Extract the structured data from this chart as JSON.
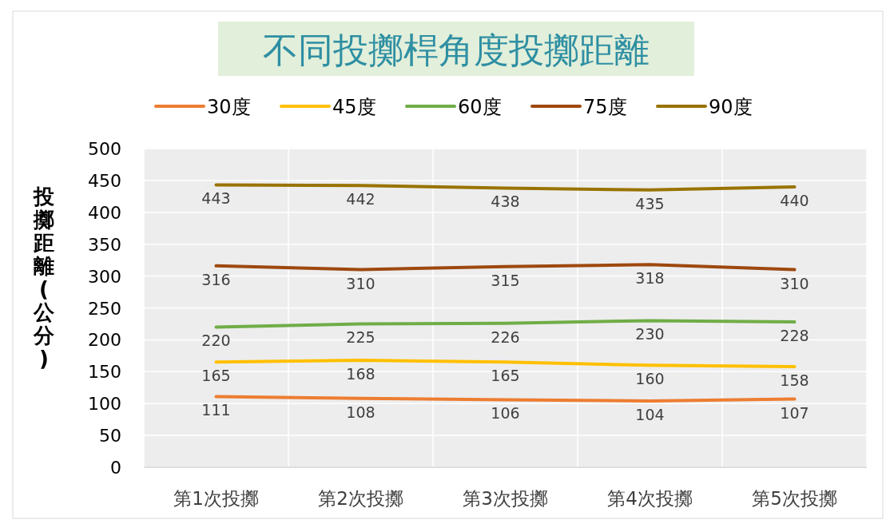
{
  "chart_data": {
    "type": "line",
    "title": "不同投擲桿角度投擲距離",
    "ylabel": "投擲距離(公分)",
    "categories": [
      "第1次投擲",
      "第2次投擲",
      "第3次投擲",
      "第4次投擲",
      "第5次投擲"
    ],
    "series": [
      {
        "name": "30度",
        "color": "#ed7d31",
        "values": [
          111,
          108,
          106,
          104,
          107
        ]
      },
      {
        "name": "45度",
        "color": "#ffc000",
        "values": [
          165,
          168,
          165,
          160,
          158
        ]
      },
      {
        "name": "60度",
        "color": "#70ad47",
        "values": [
          220,
          225,
          226,
          230,
          228
        ]
      },
      {
        "name": "75度",
        "color": "#9e480e",
        "values": [
          316,
          310,
          315,
          318,
          310
        ]
      },
      {
        "name": "90度",
        "color": "#997300",
        "values": [
          443,
          442,
          438,
          435,
          440
        ]
      }
    ],
    "ylim": [
      0,
      500
    ],
    "yticks": [
      0,
      50,
      100,
      150,
      200,
      250,
      300,
      350,
      400,
      450,
      500
    ],
    "grid": true,
    "legend": "top",
    "data_labels": true,
    "marker": "none",
    "line_style": "solid"
  }
}
